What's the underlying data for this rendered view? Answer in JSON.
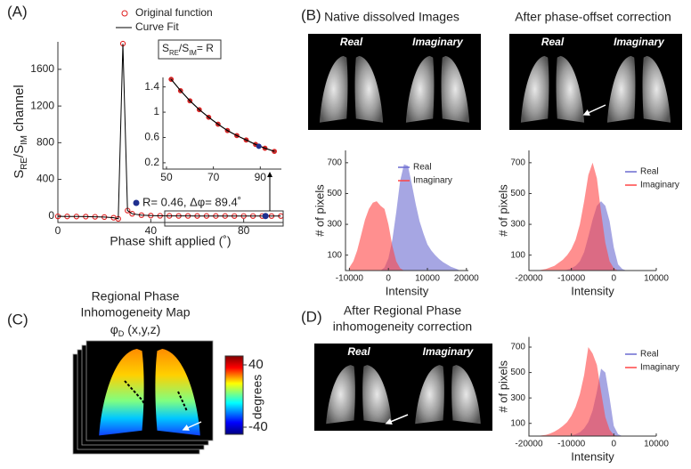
{
  "panels": {
    "labels": [
      "(A)",
      "(B)",
      "(C)",
      "(D)"
    ],
    "native_title": "Native dissolved Images",
    "corrected_title": "After phase-offset correction",
    "image_labels": [
      "Real",
      "Imaginary"
    ],
    "regional_title": [
      "After Regional Phase",
      "inhomogeneity correction"
    ],
    "map_title": [
      "Regional Phase",
      "Inhomogeneity Map"
    ],
    "map_symbol": [
      "φ",
      "D",
      " (x,y,z)"
    ],
    "colorbar": {
      "label": "degrees",
      "lim": [
        -40,
        40
      ],
      "ticks": [
        40,
        -40
      ]
    }
  },
  "chart_data": [
    {
      "type": "line",
      "xlabel": "Phase shift applied (˚)",
      "ylabel": [
        "S",
        "RE",
        "/S",
        "IM",
        " channel"
      ],
      "xlim": [
        0,
        97
      ],
      "ylim": [
        -70,
        1900
      ],
      "xticks": [
        0,
        40,
        80
      ],
      "yticks": [
        0,
        400,
        800,
        1200,
        1600
      ],
      "x": [
        0,
        4,
        8,
        12,
        16,
        20,
        24,
        26,
        28,
        30,
        32,
        36,
        40,
        44,
        48,
        52,
        56,
        60,
        64,
        68,
        72,
        76,
        80,
        84,
        88,
        92,
        96
      ],
      "series": [
        {
          "name": "Original function",
          "color": "#e02020",
          "marker": "circle",
          "values": [
            -3,
            -4,
            -5,
            -6,
            -8,
            -11,
            -18,
            -30,
            1880,
            60,
            25,
            10,
            5,
            3,
            2,
            1.52,
            1.34,
            1.18,
            1.04,
            0.92,
            0.81,
            0.71,
            0.63,
            0.56,
            0.49,
            0.43,
            0.38
          ]
        },
        {
          "name": "Curve Fit",
          "color": "#000000",
          "marker": "none",
          "values": [
            -3,
            -4,
            -5,
            -6,
            -8,
            -11,
            -18,
            -30,
            1880,
            60,
            25,
            10,
            5,
            3,
            2,
            1.52,
            1.34,
            1.18,
            1.04,
            0.92,
            0.81,
            0.71,
            0.63,
            0.56,
            0.49,
            0.43,
            0.38
          ]
        }
      ],
      "ratio_box": [
        "S",
        "RE",
        "/S",
        "IM",
        "= R"
      ],
      "annotation": "R= 0.46, Δφ= 89.4˚",
      "highlight": {
        "x": 89.4,
        "y": 0.46,
        "color": "#1f2f8f"
      },
      "inset": {
        "x": [
          52,
          56,
          60,
          64,
          68,
          72,
          76,
          80,
          84,
          88,
          92,
          96
        ],
        "values": [
          1.52,
          1.34,
          1.18,
          1.04,
          0.92,
          0.81,
          0.71,
          0.63,
          0.56,
          0.49,
          0.43,
          0.38
        ],
        "xlim": [
          48.5,
          99
        ],
        "ylim": [
          0.1,
          1.55
        ],
        "xticks": [
          50,
          70,
          90
        ],
        "yticks": [
          0.2,
          0.6,
          1,
          1.4
        ]
      }
    },
    {
      "type": "area",
      "xlabel": "Intensity",
      "ylabel": "# of pixels",
      "xlim": [
        -11000,
        20500
      ],
      "ylim": [
        0,
        780
      ],
      "xticks": [
        -10000,
        0,
        10000,
        20000
      ],
      "yticks": [
        100,
        300,
        500,
        700
      ],
      "x": [
        -10000,
        -9000,
        -8000,
        -7000,
        -6000,
        -5000,
        -4000,
        -3000,
        -2000,
        -1000,
        0,
        1000,
        2000,
        3000,
        4000,
        5000,
        6000,
        7000,
        8000,
        9000,
        10000,
        11000,
        12000,
        13000,
        14000,
        15000,
        16000,
        17000,
        18000
      ],
      "series": [
        {
          "name": "Real",
          "color": "#6a6ad0",
          "values": [
            0,
            0,
            0,
            0,
            0,
            0,
            0,
            0,
            0,
            20,
            80,
            200,
            380,
            580,
            690,
            680,
            560,
            430,
            320,
            240,
            170,
            130,
            100,
            75,
            55,
            40,
            25,
            15,
            5
          ]
        },
        {
          "name": "Imaginary",
          "color": "#ff4545",
          "values": [
            20,
            60,
            130,
            230,
            330,
            400,
            440,
            450,
            420,
            400,
            300,
            160,
            60,
            15,
            0,
            0,
            0,
            0,
            0,
            0,
            0,
            0,
            0,
            0,
            0,
            0,
            0,
            0,
            0
          ]
        }
      ]
    },
    {
      "type": "area",
      "xlabel": "Intensity",
      "ylabel": "# of pixels",
      "xlim": [
        -20000,
        10000
      ],
      "ylim": [
        0,
        780
      ],
      "xticks": [
        -20000,
        -10000,
        0,
        10000
      ],
      "yticks": [
        100,
        300,
        500,
        700
      ],
      "x": [
        -18000,
        -17000,
        -16000,
        -15000,
        -14000,
        -13000,
        -12000,
        -11000,
        -10000,
        -9000,
        -8000,
        -7000,
        -6000,
        -5000,
        -4000,
        -3000,
        -2000,
        -1000,
        0,
        1000,
        2000,
        3000
      ],
      "series": [
        {
          "name": "Real",
          "color": "#6a6ad0",
          "values": [
            0,
            0,
            0,
            0,
            0,
            0,
            0,
            5,
            15,
            30,
            60,
            120,
            220,
            330,
            420,
            450,
            420,
            320,
            150,
            40,
            10,
            0
          ]
        },
        {
          "name": "Imaginary",
          "color": "#ff4545",
          "values": [
            0,
            5,
            10,
            20,
            30,
            50,
            70,
            100,
            140,
            200,
            300,
            450,
            620,
            700,
            600,
            380,
            180,
            60,
            15,
            0,
            0,
            0
          ]
        }
      ]
    },
    {
      "type": "area",
      "xlabel": "Intensity",
      "ylabel": "# of pixels",
      "xlim": [
        -20000,
        10000
      ],
      "ylim": [
        0,
        780
      ],
      "xticks": [
        -20000,
        -10000,
        0,
        10000
      ],
      "yticks": [
        100,
        300,
        500,
        700
      ],
      "x": [
        -18000,
        -17000,
        -16000,
        -15000,
        -14000,
        -13000,
        -12000,
        -11000,
        -10000,
        -9000,
        -8000,
        -7000,
        -6000,
        -5000,
        -4000,
        -3000,
        -2000,
        -1000,
        0,
        1000,
        2000,
        3000
      ],
      "series": [
        {
          "name": "Real",
          "color": "#6a6ad0",
          "values": [
            0,
            0,
            0,
            0,
            0,
            0,
            0,
            0,
            5,
            15,
            30,
            60,
            110,
            200,
            350,
            530,
            500,
            300,
            80,
            15,
            0,
            0
          ]
        },
        {
          "name": "Imaginary",
          "color": "#ff4545",
          "values": [
            0,
            5,
            10,
            20,
            35,
            55,
            80,
            110,
            160,
            230,
            330,
            480,
            700,
            650,
            560,
            350,
            150,
            50,
            10,
            0,
            0,
            0
          ]
        }
      ]
    }
  ]
}
